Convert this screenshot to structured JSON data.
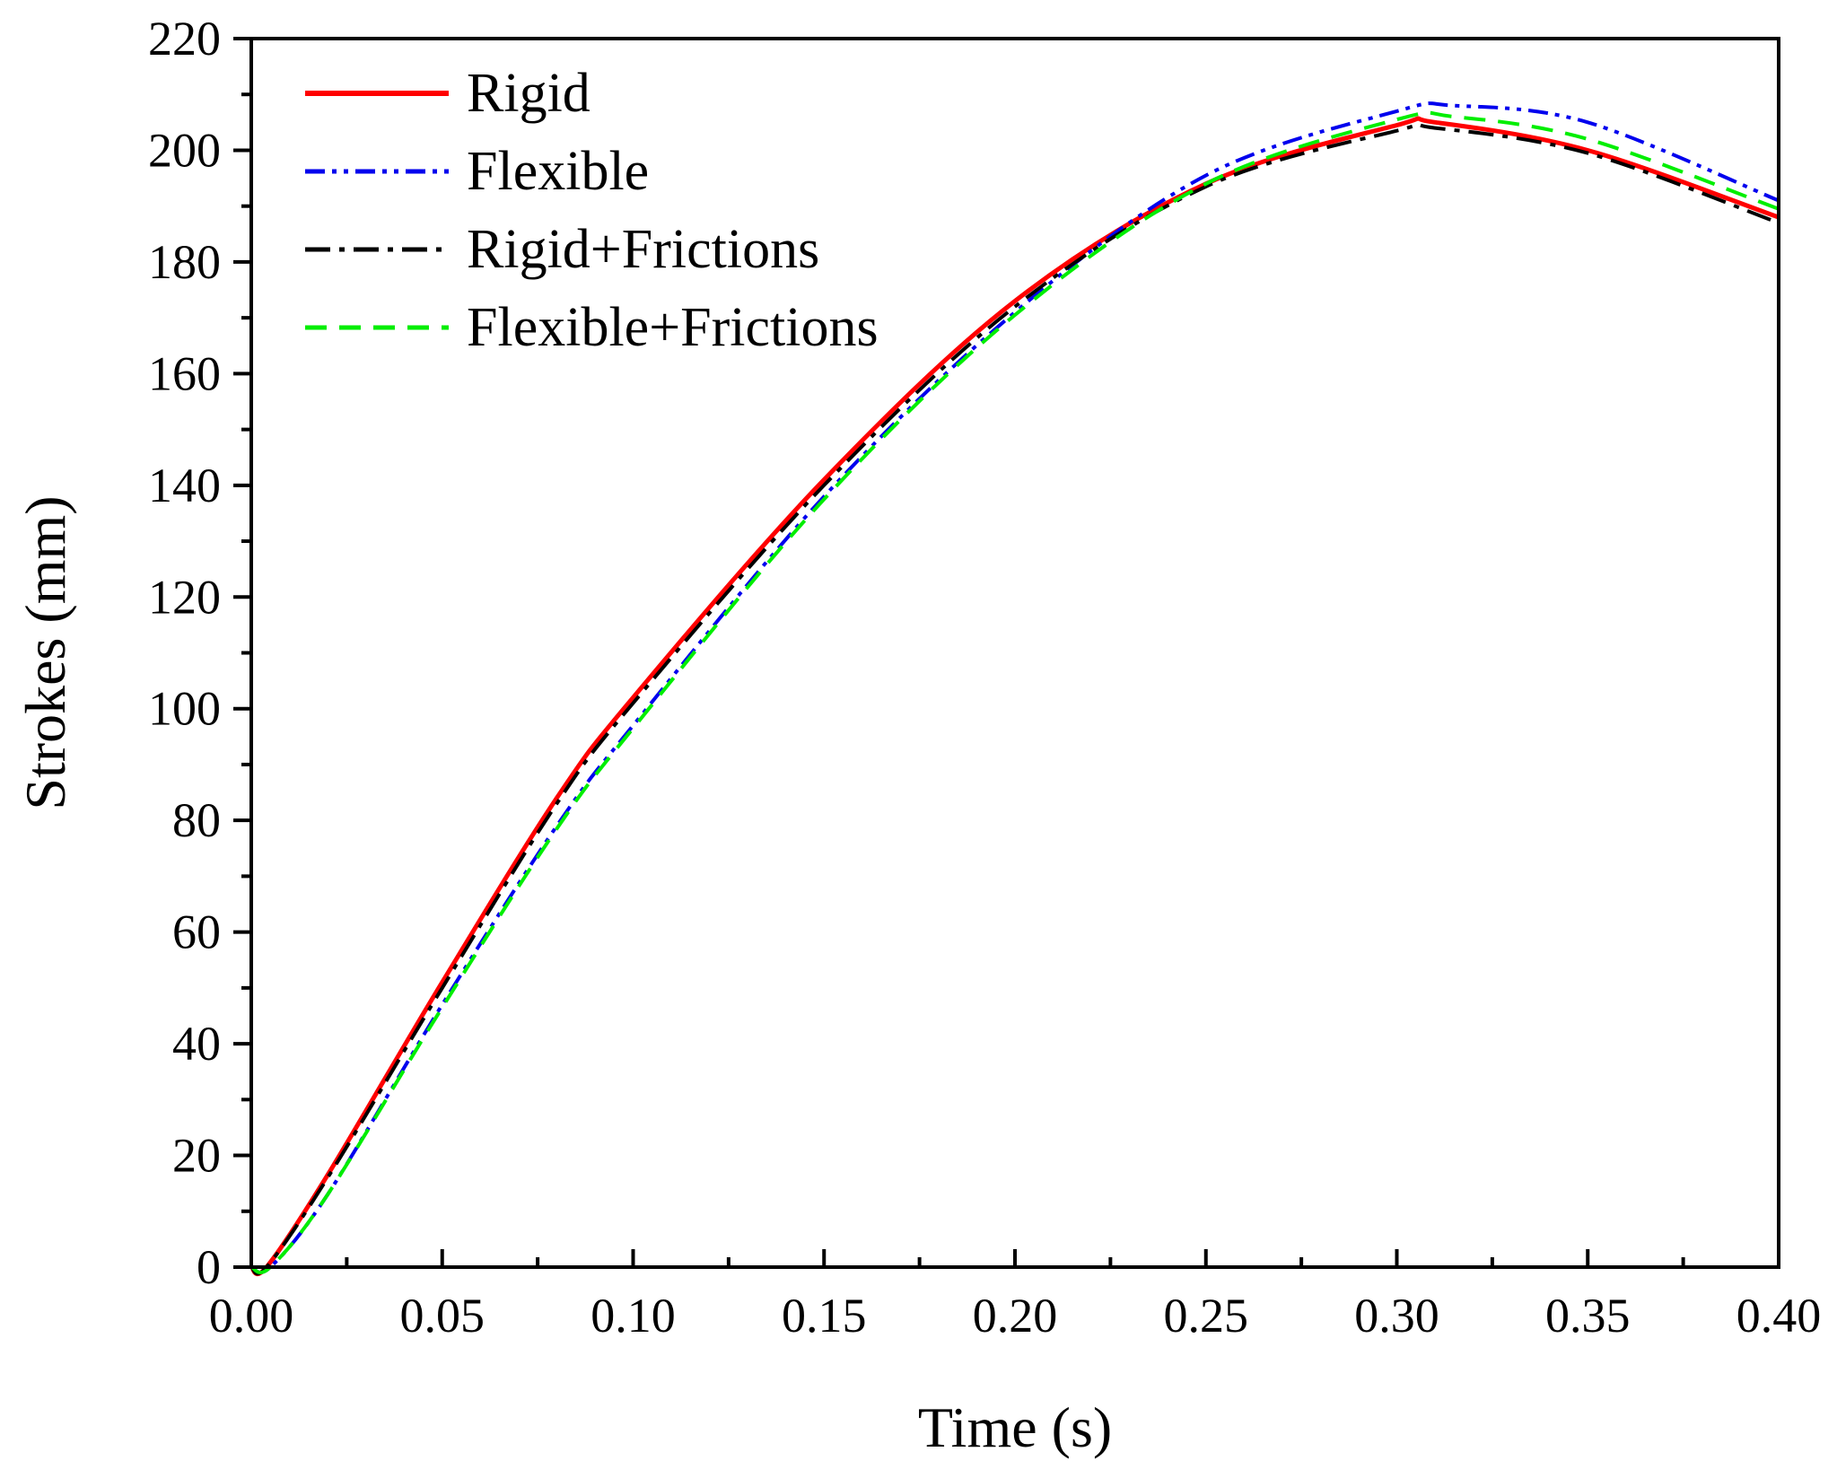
{
  "chart_data": {
    "type": "line",
    "title": "",
    "xlabel": "Time (s)",
    "ylabel": "Strokes (mm)",
    "xlim": [
      0,
      0.4
    ],
    "ylim": [
      0,
      220
    ],
    "x_ticks": [
      "0.00",
      "0.05",
      "0.10",
      "0.15",
      "0.20",
      "0.25",
      "0.30",
      "0.35",
      "0.40"
    ],
    "y_ticks": [
      "0",
      "20",
      "40",
      "60",
      "80",
      "100",
      "120",
      "140",
      "160",
      "180",
      "200",
      "220"
    ],
    "grid": false,
    "legend_position": "top-left",
    "series": [
      {
        "name": "Rigid",
        "color": "#ff0000",
        "style": "solid",
        "x": [
          0,
          0.004,
          0.02,
          0.05,
          0.08,
          0.1,
          0.15,
          0.2,
          0.25,
          0.3,
          0.31,
          0.35,
          0.4
        ],
        "y": [
          0,
          0,
          16.5,
          51,
          84,
          102,
          141,
          173,
          194,
          204.5,
          205,
          200,
          188
        ]
      },
      {
        "name": "Flexible",
        "color": "#0000ee",
        "style": "dash-dot-dot",
        "x": [
          0,
          0.005,
          0.02,
          0.05,
          0.08,
          0.1,
          0.15,
          0.2,
          0.25,
          0.3,
          0.315,
          0.35,
          0.4
        ],
        "y": [
          0,
          0,
          13,
          47,
          79,
          97,
          138,
          171,
          195.5,
          207,
          208,
          205,
          191
        ]
      },
      {
        "name": "Rigid+Frictions",
        "color": "#000000",
        "style": "dash-dot",
        "x": [
          0,
          0.004,
          0.02,
          0.05,
          0.08,
          0.1,
          0.15,
          0.2,
          0.25,
          0.3,
          0.31,
          0.35,
          0.4
        ],
        "y": [
          0,
          0,
          16,
          50,
          83,
          101,
          140,
          172,
          193.5,
          203.5,
          204,
          199.5,
          187
        ]
      },
      {
        "name": "Flexible+Frictions",
        "color": "#00ee00",
        "style": "dashed",
        "x": [
          0,
          0.005,
          0.02,
          0.05,
          0.08,
          0.1,
          0.15,
          0.2,
          0.25,
          0.3,
          0.315,
          0.35,
          0.4
        ],
        "y": [
          0,
          0,
          13,
          46.5,
          78.5,
          96.5,
          137.5,
          170.5,
          194,
          205.5,
          206,
          202,
          189.5
        ]
      }
    ]
  }
}
